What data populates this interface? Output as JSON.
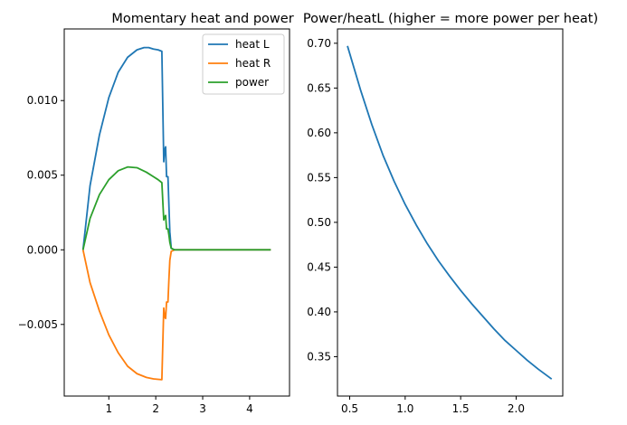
{
  "chart_data": [
    {
      "type": "line",
      "title": "Momentary heat and power",
      "xlabel": "",
      "ylabel": "",
      "xlim": [
        0.05,
        4.85
      ],
      "ylim": [
        -0.0098,
        0.0148
      ],
      "xticks": [
        "1",
        "2",
        "3",
        "4"
      ],
      "yticks": [
        "−0.005",
        "0.000",
        "0.005",
        "0.010"
      ],
      "legend": "top-right",
      "grid": false,
      "series": [
        {
          "name": "heat L",
          "color": "#1f77b4",
          "x": [
            0.45,
            0.6,
            0.8,
            1.0,
            1.2,
            1.4,
            1.6,
            1.75,
            1.85,
            1.95,
            2.05,
            2.13,
            2.17,
            2.19,
            2.21,
            2.23,
            2.26,
            2.28,
            2.3,
            2.33,
            2.4,
            3.0,
            4.45
          ],
          "y": [
            0.0,
            0.0043,
            0.0077,
            0.0102,
            0.0119,
            0.0129,
            0.0134,
            0.01355,
            0.01355,
            0.01345,
            0.0134,
            0.0133,
            0.0059,
            0.0067,
            0.0069,
            0.0049,
            0.0049,
            0.003,
            0.0012,
            0.0001,
            0.0,
            0.0,
            0.0
          ]
        },
        {
          "name": "heat R",
          "color": "#ff7f0e",
          "x": [
            0.45,
            0.6,
            0.8,
            1.0,
            1.2,
            1.4,
            1.6,
            1.8,
            1.95,
            2.05,
            2.13,
            2.17,
            2.19,
            2.21,
            2.23,
            2.26,
            2.28,
            2.3,
            2.33,
            2.4,
            3.0,
            4.45
          ],
          "y": [
            0.0,
            -0.0022,
            -0.0041,
            -0.0057,
            -0.0069,
            -0.0078,
            -0.0083,
            -0.00855,
            -0.00865,
            -0.00868,
            -0.0087,
            -0.0039,
            -0.0045,
            -0.0046,
            -0.0035,
            -0.0035,
            -0.002,
            -0.0007,
            -0.0001,
            0.0,
            0.0,
            0.0
          ]
        },
        {
          "name": "power",
          "color": "#2ca02c",
          "x": [
            0.45,
            0.6,
            0.8,
            1.0,
            1.2,
            1.4,
            1.6,
            1.8,
            1.95,
            2.05,
            2.13,
            2.17,
            2.19,
            2.21,
            2.23,
            2.26,
            2.28,
            2.3,
            2.33,
            2.4,
            3.0,
            4.45
          ],
          "y": [
            0.0,
            0.0021,
            0.0037,
            0.0047,
            0.0053,
            0.00555,
            0.0055,
            0.0052,
            0.0049,
            0.0047,
            0.0045,
            0.002,
            0.0022,
            0.0023,
            0.0014,
            0.0014,
            0.001,
            0.0005,
            0.0001,
            0.0,
            0.0,
            0.0
          ]
        }
      ]
    },
    {
      "type": "line",
      "title": "Power/heatL (higher = more power per heat)",
      "xlabel": "",
      "ylabel": "",
      "xlim": [
        0.39,
        2.42
      ],
      "ylim": [
        0.306,
        0.716
      ],
      "xticks": [
        "0.5",
        "1.0",
        "1.5",
        "2.0"
      ],
      "yticks": [
        "0.35",
        "0.40",
        "0.45",
        "0.50",
        "0.55",
        "0.60",
        "0.65",
        "0.70"
      ],
      "grid": false,
      "series": [
        {
          "color": "#1f77b4",
          "x": [
            0.48,
            0.6,
            0.7,
            0.8,
            0.9,
            1.0,
            1.1,
            1.2,
            1.3,
            1.4,
            1.5,
            1.6,
            1.7,
            1.8,
            1.9,
            2.0,
            2.1,
            2.2,
            2.32
          ],
          "y": [
            0.697,
            0.647,
            0.609,
            0.575,
            0.546,
            0.52,
            0.497,
            0.476,
            0.457,
            0.44,
            0.424,
            0.409,
            0.395,
            0.381,
            0.368,
            0.357,
            0.346,
            0.336,
            0.325
          ]
        }
      ]
    }
  ]
}
